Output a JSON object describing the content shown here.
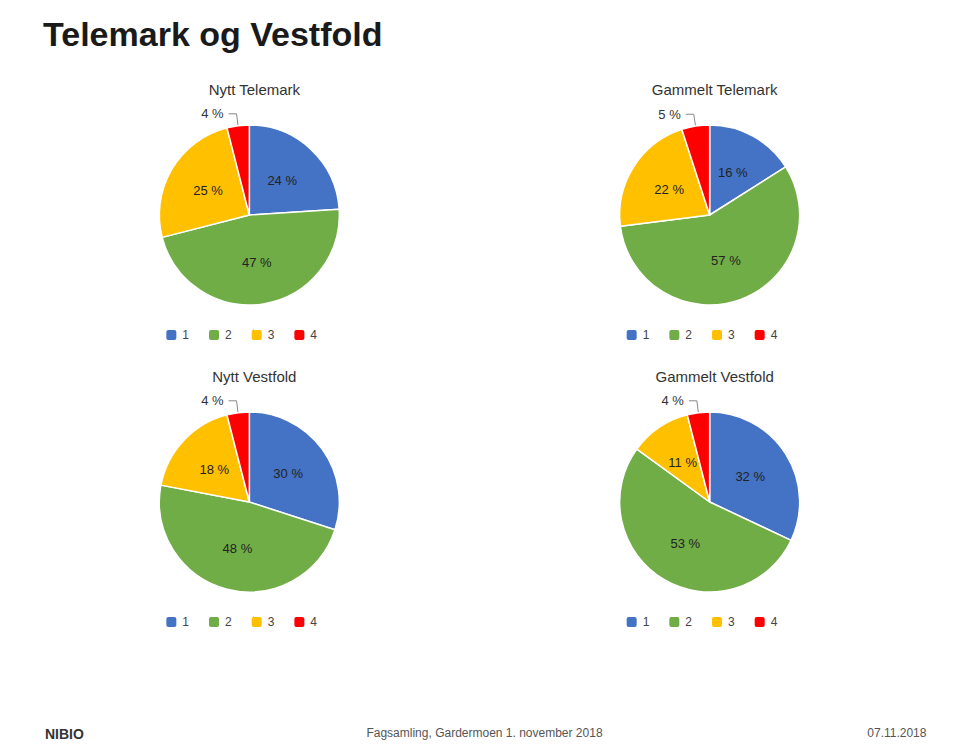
{
  "title": "Telemark og Vestfold",
  "annotations": [
    "Fagsamling, Gardermoen 1. november 2018",
    "07.11.2018",
    "NIBIO"
  ],
  "chart_data": [
    {
      "type": "pie",
      "title": "Nytt Telemark",
      "categories": [
        "1",
        "2",
        "3",
        "4"
      ],
      "values": [
        24,
        47,
        25,
        4
      ],
      "value_labels": [
        "24 %",
        "47 %",
        "25 %",
        "4 %"
      ],
      "colors": [
        "#4472C4",
        "#70AD47",
        "#FFC000",
        "#FF0000"
      ],
      "legend": "bottom",
      "data_labels": true
    },
    {
      "type": "pie",
      "title": "Gammelt Telemark",
      "categories": [
        "1",
        "2",
        "3",
        "4"
      ],
      "values": [
        16,
        57,
        22,
        5
      ],
      "value_labels": [
        "16 %",
        "57 %",
        "22 %",
        "5 %"
      ],
      "colors": [
        "#4472C4",
        "#70AD47",
        "#FFC000",
        "#FF0000"
      ],
      "legend": "bottom",
      "data_labels": true
    },
    {
      "type": "pie",
      "title": "Nytt Vestfold",
      "categories": [
        "1",
        "2",
        "3",
        "4"
      ],
      "values": [
        30,
        48,
        18,
        4
      ],
      "value_labels": [
        "30 %",
        "48 %",
        "18 %",
        "4 %"
      ],
      "colors": [
        "#4472C4",
        "#70AD47",
        "#FFC000",
        "#FF0000"
      ],
      "legend": "bottom",
      "data_labels": true
    },
    {
      "type": "pie",
      "title": "Gammelt Vestfold",
      "categories": [
        "1",
        "2",
        "3",
        "4"
      ],
      "values": [
        32,
        53,
        11,
        4
      ],
      "value_labels": [
        "32 %",
        "53 %",
        "11 %",
        "4 %"
      ],
      "colors": [
        "#4472C4",
        "#70AD47",
        "#FFC000",
        "#FF0000"
      ],
      "legend": "bottom",
      "data_labels": true
    }
  ]
}
